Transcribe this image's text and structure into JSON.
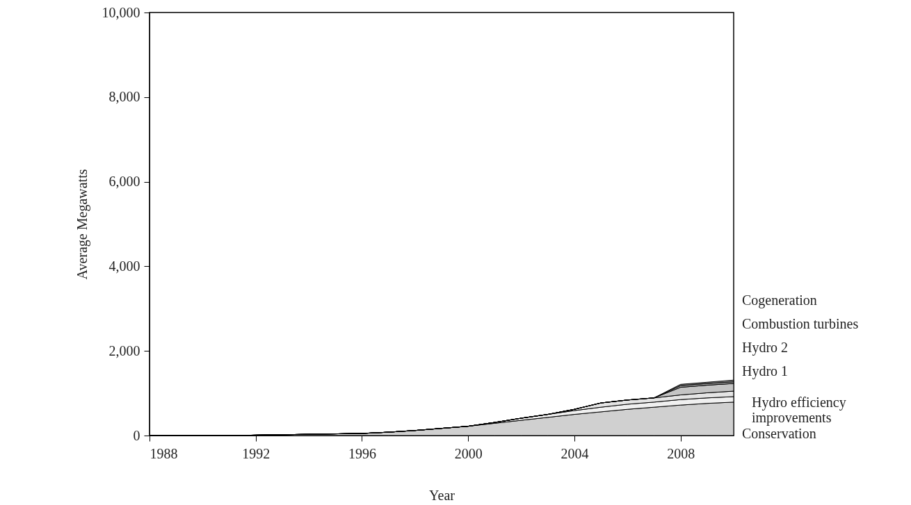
{
  "chart_data": {
    "type": "area",
    "stacked": true,
    "xlabel": "Year",
    "ylabel": "Average Megawatts",
    "x": [
      1988,
      1989,
      1990,
      1991,
      1992,
      1993,
      1994,
      1995,
      1996,
      1997,
      1998,
      1999,
      2000,
      2001,
      2002,
      2003,
      2004,
      2005,
      2006,
      2007,
      2008,
      2009,
      2010
    ],
    "series": [
      {
        "name": "Conservation",
        "color": "#d0d0d0",
        "values": [
          0,
          0,
          0,
          0,
          10,
          20,
          30,
          40,
          50,
          80,
          120,
          170,
          220,
          290,
          360,
          430,
          500,
          560,
          620,
          670,
          720,
          760,
          790
        ]
      },
      {
        "name": "Hydro efficiency improvements",
        "color": "#f0f0f0",
        "values": [
          0,
          0,
          0,
          0,
          0,
          0,
          0,
          0,
          0,
          0,
          0,
          0,
          0,
          20,
          50,
          70,
          90,
          110,
          120,
          120,
          130,
          130,
          130
        ]
      },
      {
        "name": "Hydro 1",
        "color": "#e4e4e4",
        "values": [
          0,
          0,
          0,
          0,
          0,
          0,
          0,
          0,
          0,
          0,
          0,
          0,
          0,
          0,
          0,
          0,
          30,
          100,
          100,
          100,
          110,
          120,
          130
        ]
      },
      {
        "name": "Hydro 2",
        "color": "#c4c4c4",
        "values": [
          0,
          0,
          0,
          0,
          0,
          0,
          0,
          0,
          0,
          0,
          0,
          0,
          0,
          0,
          0,
          0,
          0,
          0,
          0,
          0,
          180,
          180,
          180
        ]
      },
      {
        "name": "Combustion turbines",
        "color": "#a8a8a8",
        "values": [
          0,
          0,
          0,
          0,
          0,
          0,
          0,
          0,
          0,
          0,
          0,
          0,
          0,
          0,
          0,
          0,
          0,
          0,
          0,
          0,
          40,
          40,
          40
        ]
      },
      {
        "name": "Cogeneration",
        "color": "#888888",
        "values": [
          0,
          0,
          0,
          0,
          0,
          0,
          0,
          0,
          0,
          0,
          0,
          0,
          0,
          0,
          0,
          0,
          0,
          0,
          0,
          0,
          30,
          30,
          40
        ]
      }
    ],
    "xlim": [
      1988,
      2010
    ],
    "xticks": [
      1988,
      1992,
      1996,
      2000,
      2004,
      2008
    ],
    "ylim": [
      0,
      10000
    ],
    "yticks": [
      0,
      {
        "value": 2000,
        "label": "2,000"
      },
      {
        "value": 4000,
        "label": "4,000"
      },
      {
        "value": 6000,
        "label": "6,000"
      },
      {
        "value": 8000,
        "label": "8,000"
      },
      {
        "value": 10000,
        "label": "10,000"
      }
    ],
    "grid": false,
    "legend": false
  }
}
